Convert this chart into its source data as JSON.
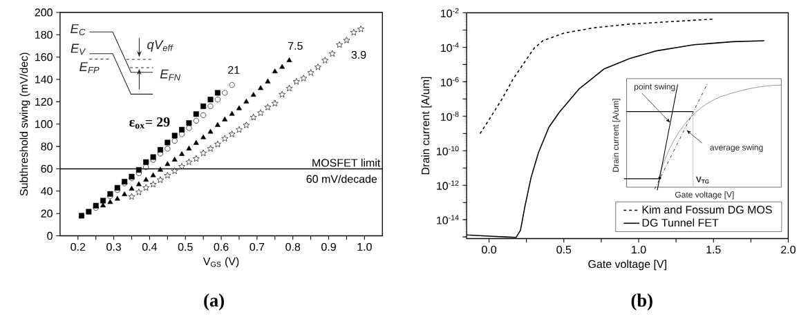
{
  "chart_data": [
    {
      "type": "scatter",
      "xlabel": "V$_{GS}$ (V)",
      "ylabel": "Subthreshold swing (mV/dec)",
      "xlim": [
        0.15,
        1.05
      ],
      "ylim": [
        0,
        200
      ],
      "xticks": [
        0.2,
        {
          "value": 0.25,
          "label": null
        },
        0.3,
        {
          "value": 0.35,
          "label": null
        },
        0.4,
        {
          "value": 0.45,
          "label": null
        },
        0.5,
        {
          "value": 0.55,
          "label": null
        },
        0.6,
        {
          "value": 0.65,
          "label": null
        },
        0.7,
        {
          "value": 0.75,
          "label": null
        },
        0.8,
        {
          "value": 0.85,
          "label": null
        },
        0.9,
        {
          "value": 0.95,
          "label": null
        },
        {
          "value": 1.0,
          "label": "1.0"
        }
      ],
      "yticks": [
        0,
        20,
        40,
        60,
        80,
        100,
        120,
        140,
        160,
        180,
        200
      ],
      "series": [
        {
          "name": "ε$_{ox}$= 29",
          "color": "#000000",
          "marker": "square",
          "x": [
            0.21,
            0.23,
            0.25,
            0.27,
            0.29,
            0.31,
            0.33,
            0.35,
            0.37,
            0.39,
            0.41,
            0.43,
            0.45,
            0.47,
            0.49,
            0.51,
            0.53,
            0.55,
            0.57,
            0.59
          ],
          "values": [
            18,
            21.6,
            27,
            31.5,
            37.5,
            43,
            48.5,
            53,
            59,
            66,
            70.5,
            77,
            83.5,
            89.7,
            95,
            101,
            109,
            116,
            122,
            128
          ]
        },
        {
          "name": "21",
          "color": "#000000",
          "marker": "circle",
          "x": [
            0.25,
            0.27,
            0.29,
            0.31,
            0.33,
            0.35,
            0.37,
            0.39,
            0.41,
            0.43,
            0.45,
            0.47,
            0.49,
            0.51,
            0.53,
            0.55,
            0.57,
            0.59,
            0.61,
            0.63
          ],
          "values": [
            25,
            null,
            35.5,
            41,
            47,
            51.5,
            56,
            61.5,
            68,
            73.6,
            78,
            85,
            91,
            96.5,
            103,
            108,
            116,
            122,
            128,
            135
          ]
        },
        {
          "name": "7.5",
          "color": "#000000",
          "marker": "triangle",
          "x": [
            0.27,
            0.29,
            0.31,
            0.33,
            0.35,
            0.37,
            0.39,
            0.41,
            0.43,
            0.45,
            0.47,
            0.49,
            0.51,
            0.53,
            0.55,
            0.57,
            0.59,
            0.61,
            0.63,
            0.65,
            0.67,
            0.69,
            0.71,
            0.73,
            0.75,
            0.77,
            0.79
          ],
          "values": [
            27,
            30,
            33,
            37,
            42,
            46,
            50,
            54,
            59,
            64,
            68,
            73,
            78,
            83,
            88,
            93,
            99,
            104,
            109,
            114,
            120,
            126,
            132,
            138,
            147,
            151,
            157
          ]
        },
        {
          "name": "3.9",
          "color": "#000000",
          "marker": "star",
          "x": [
            0.35,
            0.37,
            0.39,
            0.41,
            0.43,
            0.45,
            0.47,
            0.49,
            0.51,
            0.53,
            0.55,
            0.57,
            0.59,
            0.61,
            0.63,
            0.65,
            0.67,
            0.69,
            0.71,
            0.73,
            0.75,
            0.77,
            0.79,
            0.81,
            0.83,
            0.85,
            0.87,
            0.89,
            0.91,
            0.93,
            0.95,
            0.97,
            0.99
          ],
          "values": [
            35,
            39,
            43,
            46,
            50,
            54,
            58,
            62,
            66,
            69,
            74,
            78,
            82,
            87,
            91,
            95,
            99,
            106,
            110,
            115,
            118.5,
            126.5,
            132,
            138,
            141,
            146,
            151,
            157,
            163,
            171,
            175,
            182,
            185
          ]
        }
      ],
      "ref_lines": [
        {
          "axis": "y",
          "value": 60,
          "label": "MOSFET limit",
          "color": "#000000"
        }
      ],
      "annotations": [
        "60 mV/decade",
        "E$_{C}$",
        "E$_{V}$",
        "E$_{FP}$",
        "qV$_{eff}$",
        "E$_{FN}$",
        "(a)"
      ]
    },
    {
      "type": "line",
      "xlabel": "Gate voltage [V]",
      "ylabel": "Drain current [A/um]",
      "log": "y",
      "legend": "bottom right",
      "xlim": [
        -0.15,
        2.0
      ],
      "ylim": [
        8e-16,
        0.01
      ],
      "xticks": [
        {
          "value": 0.0,
          "label": "0.0"
        },
        {
          "value": 0.25,
          "label": null
        },
        0.5,
        {
          "value": 0.75,
          "label": null
        },
        {
          "value": 1.0,
          "label": "1.0"
        },
        {
          "value": 1.25,
          "label": null
        },
        1.5,
        {
          "value": 1.75,
          "label": null
        },
        {
          "value": 2.0,
          "label": "2.0"
        }
      ],
      "yticks": [
        {
          "value": 1e-15,
          "label": null
        },
        {
          "value": 1e-14,
          "label": "10$^{-14}$"
        },
        {
          "value": 1e-13,
          "label": null
        },
        {
          "value": 1e-12,
          "label": "10$^{-12}$"
        },
        {
          "value": 1e-11,
          "label": null
        },
        {
          "value": 1e-10,
          "label": "10$^{-10}$"
        },
        {
          "value": 1e-09,
          "label": null
        },
        {
          "value": 1e-08,
          "label": "10$^{-8}$"
        },
        {
          "value": 1e-07,
          "label": null
        },
        {
          "value": 1e-06,
          "label": "10$^{-6}$"
        },
        {
          "value": 1e-05,
          "label": null
        },
        {
          "value": 0.0001,
          "label": "10$^{-4}$"
        },
        {
          "value": 0.001,
          "label": null
        },
        {
          "value": 0.01,
          "label": "10$^{-2}$"
        }
      ],
      "series": [
        {
          "name": "Kim and Fossum DG MOS",
          "color": "#000000",
          "line_style": "dashed",
          "x": [
            -0.06,
            0.0,
            0.09,
            0.16,
            0.23,
            0.3,
            0.36,
            0.5,
            0.69,
            0.94,
            1.2,
            1.5
          ],
          "values": [
            9.8e-10,
            6.3e-09,
            1.1e-07,
            1.4e-06,
            1.1e-05,
            8.5e-05,
            0.00024,
            0.00066,
            0.0013,
            0.0022,
            0.003,
            0.0043
          ]
        },
        {
          "name": "DG Tunnel FET",
          "color": "#000000",
          "line_style": "solid",
          "x": [
            -0.15,
            0.0,
            0.18,
            0.21,
            0.24,
            0.28,
            0.33,
            0.4,
            0.47,
            0.6,
            0.77,
            0.94,
            1.12,
            1.37,
            1.63,
            1.84
          ],
          "values": [
            1.3e-15,
            1.1e-15,
            9.3e-16,
            2.4e-15,
            6e-14,
            2.6e-12,
            7.6e-11,
            2.3e-09,
            1.7e-08,
            3.7e-07,
            5.6e-06,
            2.2e-05,
            6.2e-05,
            0.00014,
            0.00021,
            0.00024
          ]
        }
      ],
      "annotations": [
        "point swing",
        "average swing",
        "Drain current [A/um]",
        "Gate voltage [V]",
        "V$_{TG}$",
        "(b)"
      ]
    }
  ]
}
